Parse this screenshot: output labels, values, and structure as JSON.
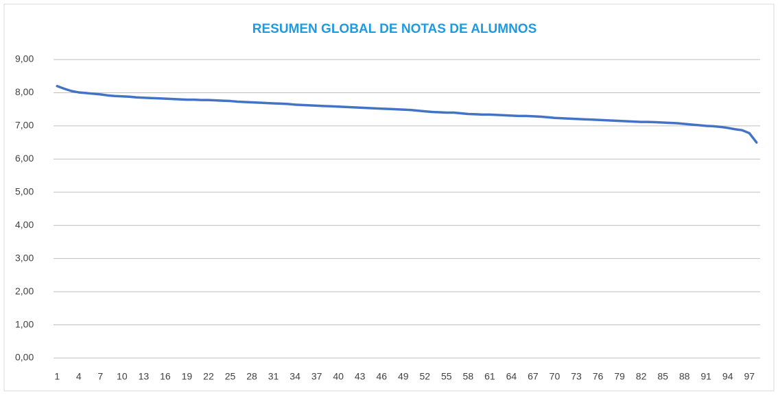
{
  "chart_data": {
    "type": "line",
    "title": "RESUMEN GLOBAL DE NOTAS DE ALUMNOS",
    "categories": [
      "1",
      null,
      null,
      "4",
      null,
      null,
      "7",
      null,
      null,
      "10",
      null,
      null,
      "13",
      null,
      null,
      "16",
      null,
      null,
      "19",
      null,
      null,
      "22",
      null,
      null,
      "25",
      null,
      null,
      "28",
      null,
      null,
      "31",
      null,
      null,
      "34",
      null,
      null,
      "37",
      null,
      null,
      "40",
      null,
      null,
      "43",
      null,
      null,
      "46",
      null,
      null,
      "49",
      null,
      null,
      "52",
      null,
      null,
      "55",
      null,
      null,
      "58",
      null,
      null,
      "61",
      null,
      null,
      "64",
      null,
      null,
      "67",
      null,
      null,
      "70",
      null,
      null,
      "73",
      null,
      null,
      "76",
      null,
      null,
      "79",
      null,
      null,
      "82",
      null,
      null,
      "85",
      null,
      null,
      "88",
      null,
      null,
      "91",
      null,
      null,
      "94",
      null,
      null,
      "97",
      null
    ],
    "values": [
      8.2,
      8.12,
      8.05,
      8.01,
      7.99,
      7.97,
      7.95,
      7.92,
      7.9,
      7.89,
      7.88,
      7.86,
      7.85,
      7.84,
      7.83,
      7.82,
      7.81,
      7.8,
      7.79,
      7.79,
      7.78,
      7.78,
      7.77,
      7.76,
      7.75,
      7.73,
      7.72,
      7.71,
      7.7,
      7.69,
      7.68,
      7.67,
      7.66,
      7.64,
      7.63,
      7.62,
      7.61,
      7.6,
      7.59,
      7.58,
      7.57,
      7.56,
      7.55,
      7.54,
      7.53,
      7.52,
      7.51,
      7.5,
      7.49,
      7.48,
      7.46,
      7.44,
      7.42,
      7.41,
      7.4,
      7.4,
      7.38,
      7.36,
      7.35,
      7.34,
      7.34,
      7.33,
      7.32,
      7.31,
      7.3,
      7.3,
      7.29,
      7.28,
      7.26,
      7.24,
      7.23,
      7.22,
      7.21,
      7.2,
      7.19,
      7.18,
      7.17,
      7.16,
      7.15,
      7.14,
      7.13,
      7.12,
      7.12,
      7.11,
      7.1,
      7.09,
      7.08,
      7.06,
      7.04,
      7.02,
      7.0,
      6.99,
      6.97,
      6.94,
      6.9,
      6.87,
      6.78,
      6.5
    ],
    "color": "#4472c4",
    "ylim": [
      0,
      9
    ],
    "yticks": [
      {
        "value": 0,
        "label": "0,00"
      },
      {
        "value": 1,
        "label": "1,00"
      },
      {
        "value": 2,
        "label": "2,00"
      },
      {
        "value": 3,
        "label": "3,00"
      },
      {
        "value": 4,
        "label": "4,00"
      },
      {
        "value": 5,
        "label": "5,00"
      },
      {
        "value": 6,
        "label": "6,00"
      },
      {
        "value": 7,
        "label": "7,00"
      },
      {
        "value": 8,
        "label": "8,00"
      },
      {
        "value": 9,
        "label": "9,00"
      }
    ],
    "grid": true
  }
}
